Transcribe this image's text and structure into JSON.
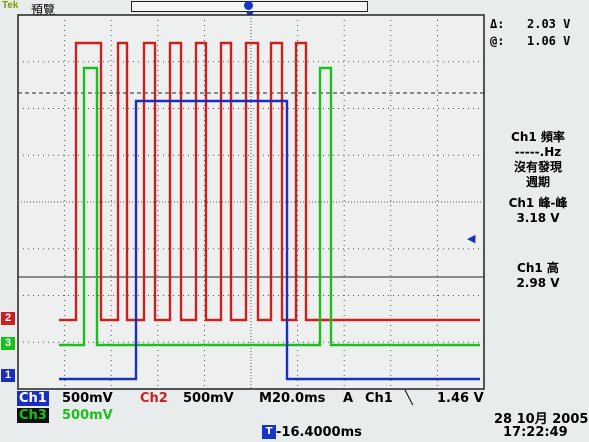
{
  "header": {
    "brand": "Tek",
    "mode": "預覽"
  },
  "readouts": {
    "delta_label": "Δ:",
    "delta_value": "2.03 V",
    "at_label": "@:",
    "at_value": "1.06 V"
  },
  "measurements": [
    {
      "title": "Ch1 頻率",
      "value": "-----.Hz",
      "value2": "沒有發現",
      "value3": "週期"
    },
    {
      "title": "Ch1 峰-峰",
      "value": "3.18 V"
    },
    {
      "title": "Ch1 高",
      "value": "2.98 V"
    }
  ],
  "channels": {
    "ch1": {
      "label": "Ch1",
      "scale": "500mV",
      "color": "#1a2fc0",
      "marker": "1"
    },
    "ch2": {
      "label": "Ch2",
      "scale": "500mV",
      "color": "#cc1f1f",
      "marker": "2"
    },
    "ch3": {
      "label": "Ch3",
      "scale": "500mV",
      "color": "#1bbf1b",
      "marker": "3"
    }
  },
  "timebase": {
    "label": "M",
    "value": "20.0ms"
  },
  "trigger": {
    "mode": "A",
    "source": "Ch1",
    "slope": "╲",
    "level": "1.46 V",
    "tag": "T"
  },
  "position": {
    "value": "-16.4000ms"
  },
  "datetime": {
    "date": "28 10月 2005",
    "time": "17:22:49"
  }
}
